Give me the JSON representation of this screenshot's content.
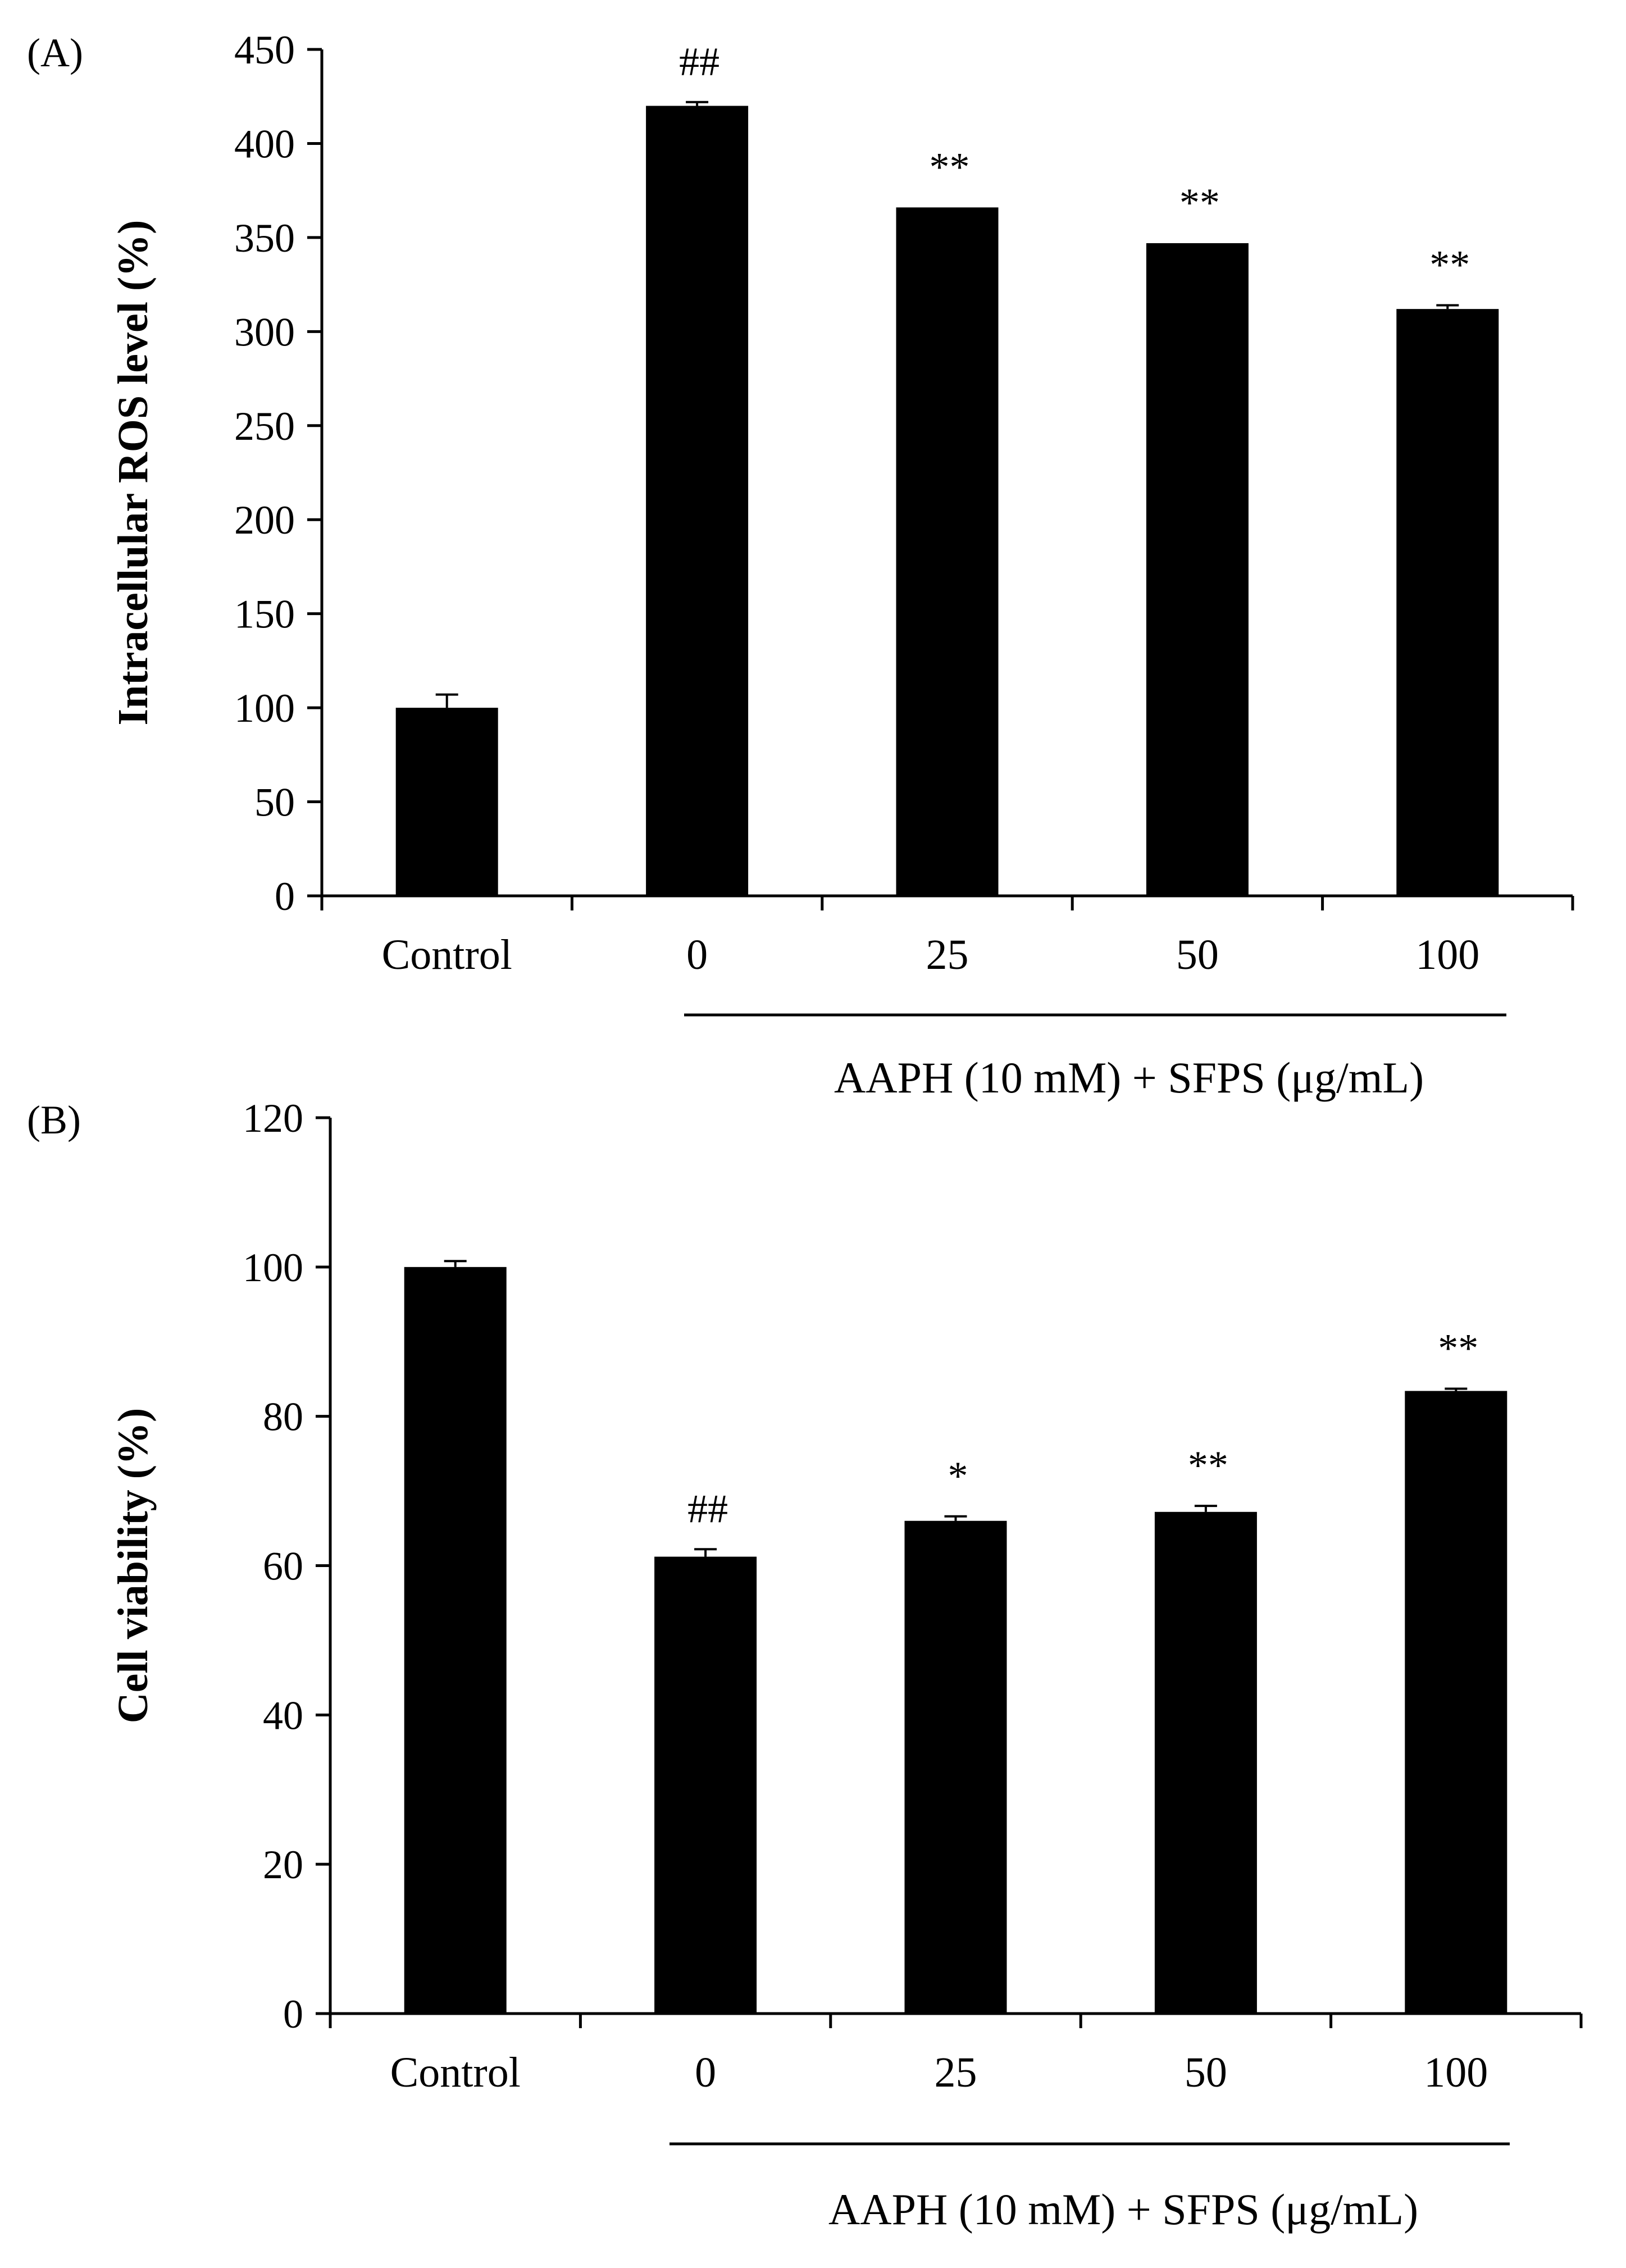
{
  "chart_data": [
    {
      "panel": "(A)",
      "type": "bar",
      "ylabel": "Intracellular ROS level (%)",
      "xlabel": "",
      "ylim": [
        0,
        450
      ],
      "yticks": [
        "0",
        "50",
        "100",
        "150",
        "200",
        "250",
        "300",
        "350",
        "400",
        "450"
      ],
      "categories": [
        "Control",
        "0",
        "25",
        "50",
        "100"
      ],
      "values": [
        100,
        420,
        366,
        347,
        312
      ],
      "errors": [
        7,
        2,
        0,
        0,
        2
      ],
      "annotations": [
        "",
        "##",
        "**",
        "**",
        "**"
      ],
      "group_label": "AAPH (10 mM) + SFPS (μg/mL)",
      "color": "#000000",
      "grid": false
    },
    {
      "panel": "(B)",
      "type": "bar",
      "ylabel": "Cell viability (%)",
      "xlabel": "",
      "ylim": [
        0,
        120
      ],
      "yticks": [
        "0",
        "20",
        "40",
        "60",
        "80",
        "100",
        "120"
      ],
      "categories": [
        "Control",
        "0",
        "25",
        "50",
        "100"
      ],
      "values": [
        100,
        61.2,
        66,
        67.2,
        83.4
      ],
      "errors": [
        0.8,
        1.0,
        0.6,
        0.8,
        0.3
      ],
      "annotations": [
        "",
        "##",
        "*",
        "**",
        "**"
      ],
      "group_label": "AAPH (10 mM) + SFPS (μg/mL)",
      "color": "#000000",
      "grid": false
    }
  ]
}
